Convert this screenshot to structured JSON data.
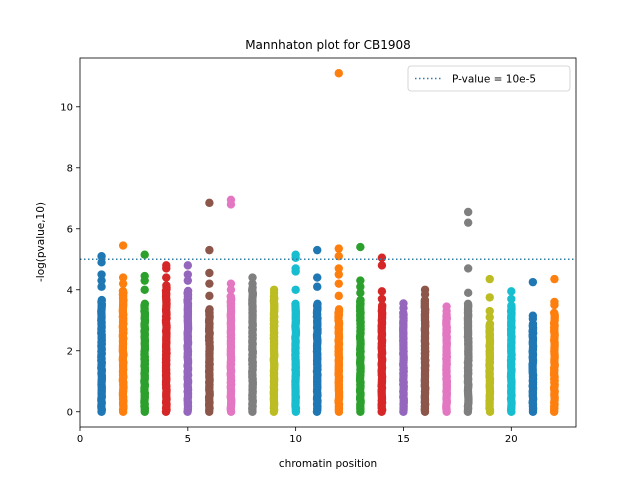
{
  "chart_data": {
    "type": "scatter",
    "title": "Mannhaton plot for CB1908",
    "xlabel": "chromatin position",
    "ylabel": "-log(pvalue,10)",
    "xlim": [
      0,
      23
    ],
    "ylim": [
      -0.5,
      11.6
    ],
    "x_ticks": [
      0,
      5,
      10,
      15,
      20
    ],
    "y_ticks": [
      0,
      2,
      4,
      6,
      8,
      10
    ],
    "threshold": {
      "label": "P-value = 10e-5",
      "value": 5.0,
      "color": "#2f7ca8",
      "style": "dotted"
    },
    "legend_position": "top-right",
    "palette": [
      "#1f77b4",
      "#ff7f0e",
      "#2ca02c",
      "#d62728",
      "#9467bd",
      "#8c564b",
      "#e377c2",
      "#7f7f7f",
      "#bcbd22",
      "#17becf"
    ],
    "chromosomes": [
      {
        "chr": 1,
        "dense_max": 3.7,
        "outliers": [
          4.1,
          4.3,
          4.5,
          4.9,
          5.1
        ]
      },
      {
        "chr": 2,
        "dense_max": 4.0,
        "outliers": [
          4.2,
          4.4,
          5.45
        ]
      },
      {
        "chr": 3,
        "dense_max": 3.6,
        "outliers": [
          4.0,
          4.3,
          4.45,
          5.15
        ]
      },
      {
        "chr": 4,
        "dense_max": 4.2,
        "outliers": [
          4.4,
          4.7,
          4.8
        ]
      },
      {
        "chr": 5,
        "dense_max": 4.0,
        "outliers": [
          4.3,
          4.5,
          4.8
        ]
      },
      {
        "chr": 6,
        "dense_max": 3.4,
        "outliers": [
          3.8,
          4.2,
          4.55,
          5.3,
          6.85
        ]
      },
      {
        "chr": 7,
        "dense_max": 3.8,
        "outliers": [
          4.0,
          4.2,
          6.8,
          6.95
        ]
      },
      {
        "chr": 8,
        "dense_max": 4.1,
        "outliers": [
          4.2,
          4.4
        ]
      },
      {
        "chr": 9,
        "dense_max": 3.8,
        "outliers": [
          3.9,
          4.0
        ]
      },
      {
        "chr": 10,
        "dense_max": 3.6,
        "outliers": [
          4.0,
          4.6,
          4.7,
          5.05,
          5.15
        ]
      },
      {
        "chr": 11,
        "dense_max": 3.6,
        "outliers": [
          4.1,
          4.4,
          5.3
        ]
      },
      {
        "chr": 12,
        "dense_max": 3.4,
        "outliers": [
          3.8,
          4.2,
          4.5,
          4.7,
          5.1,
          5.35,
          11.1
        ]
      },
      {
        "chr": 13,
        "dense_max": 3.7,
        "outliers": [
          3.9,
          4.1,
          4.3,
          5.4
        ]
      },
      {
        "chr": 14,
        "dense_max": 3.5,
        "outliers": [
          3.7,
          3.95,
          4.8,
          5.05
        ]
      },
      {
        "chr": 15,
        "dense_max": 3.3,
        "outliers": [
          3.4,
          3.55
        ]
      },
      {
        "chr": 16,
        "dense_max": 3.7,
        "outliers": [
          3.85,
          4.0
        ]
      },
      {
        "chr": 17,
        "dense_max": 3.2,
        "outliers": [
          3.3,
          3.45
        ]
      },
      {
        "chr": 18,
        "dense_max": 3.6,
        "outliers": [
          3.9,
          4.7,
          6.2,
          6.55
        ]
      },
      {
        "chr": 19,
        "dense_max": 2.9,
        "outliers": [
          3.1,
          3.3,
          3.75,
          4.35
        ]
      },
      {
        "chr": 20,
        "dense_max": 3.5,
        "outliers": [
          3.7,
          3.95
        ]
      },
      {
        "chr": 21,
        "dense_max": 2.9,
        "outliers": [
          3.05,
          3.15,
          4.25
        ]
      },
      {
        "chr": 22,
        "dense_max": 3.3,
        "outliers": [
          3.5,
          3.6,
          4.35
        ]
      }
    ]
  }
}
